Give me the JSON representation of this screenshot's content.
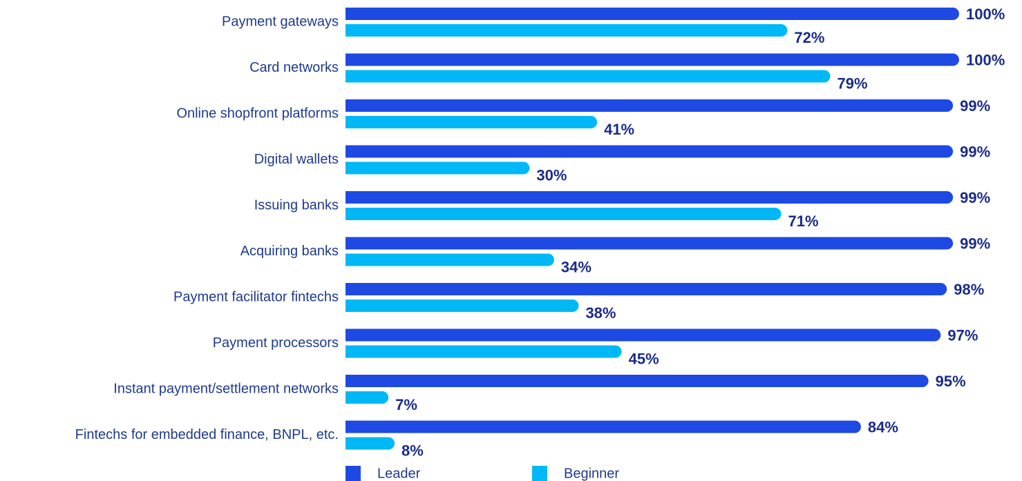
{
  "chart_data": {
    "type": "bar",
    "orientation": "horizontal",
    "categories": [
      "Payment gateways",
      "Card networks",
      "Online shopfront platforms",
      "Digital wallets",
      "Issuing banks",
      "Acquiring banks",
      "Payment facilitator fintechs",
      "Payment processors",
      "Instant payment/settlement networks",
      "Fintechs for embedded finance, BNPL, etc."
    ],
    "series": [
      {
        "name": "Leader",
        "color": "#1e49e2",
        "values": [
          100,
          100,
          99,
          99,
          99,
          99,
          98,
          97,
          95,
          84
        ],
        "value_labels": [
          "100%",
          "100%",
          "99%",
          "99%",
          "99%",
          "99%",
          "98%",
          "97%",
          "95%",
          "84%"
        ]
      },
      {
        "name": "Beginner",
        "color": "#00b8f5",
        "values": [
          72,
          79,
          41,
          30,
          71,
          34,
          38,
          45,
          7,
          8
        ],
        "value_labels": [
          "72%",
          "79%",
          "41%",
          "30%",
          "71%",
          "34%",
          "38%",
          "45%",
          "7%",
          "8%"
        ]
      }
    ],
    "legend": "bottom"
  }
}
